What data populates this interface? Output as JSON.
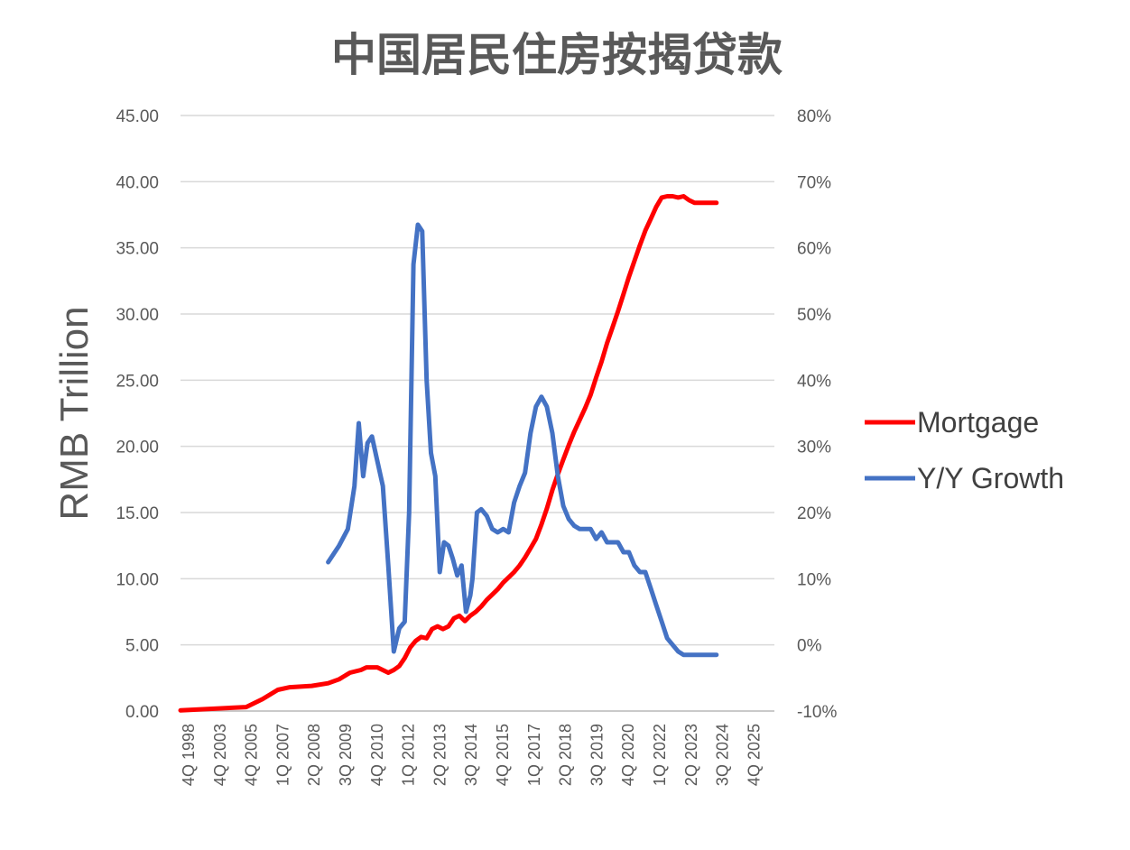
{
  "chart_data": {
    "type": "line",
    "title": "中国居民住房按揭贷款",
    "xlabel": "",
    "ylabel": "RMB Trillion",
    "ylim": [
      0,
      45
    ],
    "y2lim": [
      -10,
      80
    ],
    "grid": true,
    "legend_position": "right",
    "y_ticks": [
      "0.00",
      "5.00",
      "10.00",
      "15.00",
      "20.00",
      "25.00",
      "30.00",
      "35.00",
      "40.00",
      "45.00"
    ],
    "y2_ticks": [
      "-10%",
      "0%",
      "10%",
      "20%",
      "30%",
      "40%",
      "50%",
      "60%",
      "70%",
      "80%"
    ],
    "x_tick_labels": [
      "4Q 1998",
      "4Q 2003",
      "4Q 2005",
      "1Q 2007",
      "2Q 2008",
      "3Q 2009",
      "4Q 2010",
      "1Q 2012",
      "2Q 2013",
      "3Q 2014",
      "4Q 2015",
      "1Q 2017",
      "2Q 2018",
      "3Q 2019",
      "4Q 2020",
      "1Q 2022",
      "2Q 2023",
      "3Q 2024",
      "4Q 2025"
    ],
    "series": [
      {
        "name": "Mortgage",
        "axis": "left",
        "color": "#ff0000",
        "x": [
          1998.75,
          2001.75,
          2002.5,
          2003.2,
          2003.75,
          2004.75,
          2005.5,
          2006.0,
          2006.5,
          2007.0,
          2007.25,
          2007.75,
          2008.25,
          2008.5,
          2008.75,
          2009.0,
          2009.25,
          2009.5,
          2009.75,
          2010.0,
          2010.25,
          2010.5,
          2010.75,
          2011.0,
          2011.25,
          2011.5,
          2011.75,
          2012.0,
          2012.25,
          2012.5,
          2012.75,
          2013.0,
          2013.25,
          2013.5,
          2013.75,
          2014.0,
          2014.25,
          2014.5,
          2014.75,
          2015.0,
          2015.25,
          2015.5,
          2015.75,
          2016.0,
          2016.25,
          2016.5,
          2016.75,
          2017.0,
          2017.25,
          2017.5,
          2017.75,
          2018.0,
          2018.25,
          2018.5,
          2018.75,
          2019.0,
          2019.25,
          2019.5,
          2019.75,
          2020.0,
          2020.25,
          2020.5,
          2020.75,
          2021.0,
          2021.25,
          2021.5,
          2021.75,
          2022.0,
          2022.25,
          2022.5,
          2022.75,
          2023.0,
          2023.25
        ],
        "values": [
          0.05,
          0.3,
          0.9,
          1.6,
          1.8,
          1.9,
          2.1,
          2.4,
          2.9,
          3.1,
          3.3,
          3.3,
          2.9,
          3.1,
          3.4,
          4.0,
          4.8,
          5.3,
          5.6,
          5.5,
          6.2,
          6.4,
          6.2,
          6.4,
          7.0,
          7.2,
          6.8,
          7.2,
          7.5,
          7.9,
          8.4,
          8.8,
          9.2,
          9.7,
          10.1,
          10.5,
          11.0,
          11.6,
          12.3,
          13.0,
          14.1,
          15.3,
          16.7,
          17.9,
          19.0,
          20.1,
          21.1,
          22.0,
          22.9,
          23.9,
          25.2,
          26.4,
          27.8,
          29.0,
          30.2,
          31.5,
          32.8,
          34.0,
          35.2,
          36.3,
          37.2,
          38.1,
          38.8,
          38.9,
          38.9,
          38.8,
          38.9,
          38.6,
          38.4,
          38.4,
          38.4,
          38.4,
          38.4
        ]
      },
      {
        "name": "Y/Y Growth",
        "axis": "right",
        "color": "#4472c4",
        "x": [
          2005.5,
          2006.0,
          2006.4,
          2006.7,
          2006.9,
          2007.1,
          2007.3,
          2007.5,
          2007.7,
          2008.0,
          2008.25,
          2008.5,
          2008.75,
          2009.0,
          2009.2,
          2009.4,
          2009.6,
          2009.8,
          2010.0,
          2010.2,
          2010.4,
          2010.6,
          2010.8,
          2011.0,
          2011.2,
          2011.4,
          2011.6,
          2011.8,
          2012.0,
          2012.1,
          2012.3,
          2012.5,
          2012.75,
          2013.0,
          2013.25,
          2013.5,
          2013.75,
          2014.0,
          2014.25,
          2014.5,
          2014.75,
          2015.0,
          2015.25,
          2015.5,
          2015.75,
          2016.0,
          2016.25,
          2016.5,
          2016.75,
          2017.0,
          2017.25,
          2017.5,
          2017.75,
          2018.0,
          2018.25,
          2018.5,
          2018.75,
          2019.0,
          2019.25,
          2019.5,
          2019.75,
          2020.0,
          2020.25,
          2020.5,
          2020.75,
          2021.0,
          2021.25,
          2021.5,
          2021.75,
          2022.0,
          2022.25,
          2022.5,
          2022.75,
          2023.0,
          2023.25
        ],
        "values": [
          12.5,
          15.0,
          17.5,
          24.0,
          33.5,
          25.5,
          30.5,
          31.5,
          28.5,
          24.0,
          12.0,
          -1.0,
          2.5,
          3.5,
          20.0,
          57.5,
          63.5,
          62.5,
          40.0,
          29.0,
          25.5,
          11.0,
          15.5,
          15.0,
          13.0,
          10.5,
          12.0,
          5.0,
          7.5,
          10.0,
          20.0,
          20.5,
          19.5,
          17.5,
          17.0,
          17.5,
          17.0,
          21.5,
          24.0,
          26.0,
          32.0,
          36.0,
          37.5,
          36.0,
          32.0,
          25.5,
          21.0,
          19.0,
          18.0,
          17.5,
          17.5,
          17.5,
          16.0,
          17.0,
          15.5,
          15.5,
          15.5,
          14.0,
          14.0,
          12.0,
          11.0,
          11.0,
          8.5,
          6.0,
          3.5,
          1.0,
          0.0,
          -1.0,
          -1.5,
          -1.5,
          -1.5,
          -1.5,
          -1.5,
          -1.5,
          -1.5
        ]
      }
    ]
  }
}
